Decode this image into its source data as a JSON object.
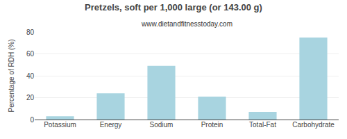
{
  "chart_data": {
    "type": "bar",
    "title": "Pretzels, soft per 1,000 large (or 143.00 g)",
    "subtitle": "www.dietandfitnesstoday.com",
    "ylabel": "Percentage of RDH (%)",
    "categories": [
      "Potassium",
      "Energy",
      "Sodium",
      "Protein",
      "Total-Fat",
      "Carbohydrate"
    ],
    "values": [
      3,
      24,
      49,
      21,
      7,
      75
    ],
    "color": "#a8d4e0",
    "ylim": [
      0,
      80
    ],
    "yticks": [
      0,
      20,
      40,
      60,
      80
    ],
    "grid": true
  }
}
